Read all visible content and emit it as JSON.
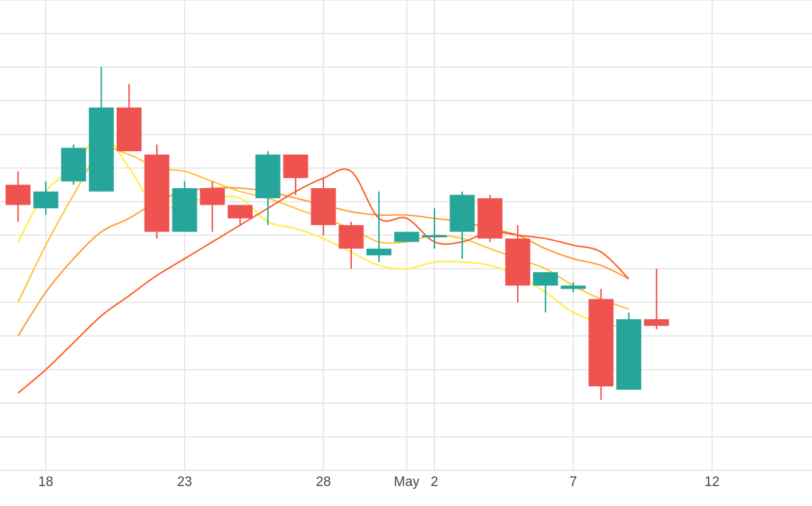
{
  "chart_data": {
    "type": "candlestick",
    "title": "",
    "xlabel": "",
    "ylabel": "",
    "x_ticks": [
      {
        "day": 2,
        "label": "18"
      },
      {
        "day": 7,
        "label": "23"
      },
      {
        "day": 12,
        "label": "28"
      },
      {
        "day": 15,
        "label": "May"
      },
      {
        "day": 16,
        "label": "2"
      },
      {
        "day": 21,
        "label": "7"
      },
      {
        "day": 26,
        "label": "12"
      }
    ],
    "x_range": [
      0.35,
      29.6
    ],
    "y_range": [
      0,
      14
    ],
    "grid": true,
    "legend": "none",
    "colors": {
      "up": "#26a69a",
      "down": "#ef5350",
      "grid": "#e3e3e3",
      "ma_lines": [
        "#ffee33",
        "#ffc233",
        "#ff9933",
        "#ff5a1f"
      ]
    },
    "candles": [
      {
        "day": 1,
        "open": 8.5,
        "high": 8.9,
        "low": 7.4,
        "close": 7.9
      },
      {
        "day": 2,
        "open": 7.8,
        "high": 8.6,
        "low": 7.6,
        "close": 8.3
      },
      {
        "day": 3,
        "open": 8.6,
        "high": 9.7,
        "low": 8.5,
        "close": 9.6
      },
      {
        "day": 4,
        "open": 8.3,
        "high": 12.0,
        "low": 8.3,
        "close": 10.8
      },
      {
        "day": 5,
        "open": 10.8,
        "high": 11.5,
        "low": 9.5,
        "close": 9.5
      },
      {
        "day": 6,
        "open": 9.4,
        "high": 9.7,
        "low": 6.9,
        "close": 7.1
      },
      {
        "day": 7,
        "open": 7.1,
        "high": 8.6,
        "low": 7.1,
        "close": 8.4
      },
      {
        "day": 8,
        "open": 8.4,
        "high": 8.6,
        "low": 7.1,
        "close": 7.9
      },
      {
        "day": 9,
        "open": 7.9,
        "high": 7.9,
        "low": 7.3,
        "close": 7.5
      },
      {
        "day": 10,
        "open": 8.1,
        "high": 9.5,
        "low": 7.3,
        "close": 9.4
      },
      {
        "day": 11,
        "open": 9.4,
        "high": 9.4,
        "low": 8.2,
        "close": 8.7
      },
      {
        "day": 12,
        "open": 8.4,
        "high": 8.7,
        "low": 7.0,
        "close": 7.3
      },
      {
        "day": 13,
        "open": 7.3,
        "high": 7.4,
        "low": 6.0,
        "close": 6.6
      },
      {
        "day": 14,
        "open": 6.4,
        "high": 8.3,
        "low": 6.2,
        "close": 6.6
      },
      {
        "day": 15,
        "open": 6.8,
        "high": 7.1,
        "low": 6.8,
        "close": 7.1
      },
      {
        "day": 16,
        "open": 7.0,
        "high": 7.8,
        "low": 6.6,
        "close": 7.0
      },
      {
        "day": 17,
        "open": 7.1,
        "high": 8.3,
        "low": 6.3,
        "close": 8.2
      },
      {
        "day": 18,
        "open": 8.1,
        "high": 8.2,
        "low": 6.8,
        "close": 6.9
      },
      {
        "day": 19,
        "open": 6.9,
        "high": 7.3,
        "low": 5.0,
        "close": 5.5
      },
      {
        "day": 20,
        "open": 5.5,
        "high": 5.9,
        "low": 4.7,
        "close": 5.9
      },
      {
        "day": 21,
        "open": 5.4,
        "high": 5.6,
        "low": 5.3,
        "close": 5.5
      },
      {
        "day": 22,
        "open": 5.1,
        "high": 5.4,
        "low": 2.1,
        "close": 2.5
      },
      {
        "day": 23,
        "open": 2.4,
        "high": 4.7,
        "low": 2.4,
        "close": 4.5
      },
      {
        "day": 24,
        "open": 4.5,
        "high": 6.0,
        "low": 4.2,
        "close": 4.3
      }
    ],
    "ma_lines": [
      {
        "y": [
          6.8,
          8.3,
          9.0,
          10.0,
          9.0,
          7.8,
          8.0,
          8.1,
          8.1,
          7.4,
          7.2,
          6.9,
          6.5,
          6.1,
          6.0,
          6.2,
          6.2,
          6.1,
          5.8,
          5.3,
          4.7,
          4.4,
          4.2
        ]
      },
      {
        "y": [
          5.0,
          6.7,
          8.2,
          9.5,
          9.4,
          9.0,
          8.9,
          8.6,
          8.3,
          8.1,
          7.8,
          7.5,
          7.2,
          6.8,
          6.8,
          7.0,
          6.9,
          6.6,
          6.3,
          6.0,
          5.5,
          5.1,
          4.8
        ]
      },
      {
        "y": [
          4.0,
          5.3,
          6.3,
          7.1,
          7.5,
          8.0,
          8.3,
          8.4,
          8.4,
          8.3,
          8.1,
          7.9,
          7.7,
          7.6,
          7.6,
          7.5,
          7.4,
          7.2,
          7.0,
          6.6,
          6.3,
          6.1,
          5.7
        ]
      },
      {
        "y": [
          2.3,
          3.0,
          3.8,
          4.6,
          5.2,
          5.8,
          6.3,
          6.8,
          7.3,
          7.8,
          8.3,
          8.7,
          8.9,
          7.5,
          7.5,
          6.8,
          6.8,
          7.1,
          7.0,
          6.9,
          6.7,
          6.5,
          5.7
        ]
      }
    ]
  }
}
